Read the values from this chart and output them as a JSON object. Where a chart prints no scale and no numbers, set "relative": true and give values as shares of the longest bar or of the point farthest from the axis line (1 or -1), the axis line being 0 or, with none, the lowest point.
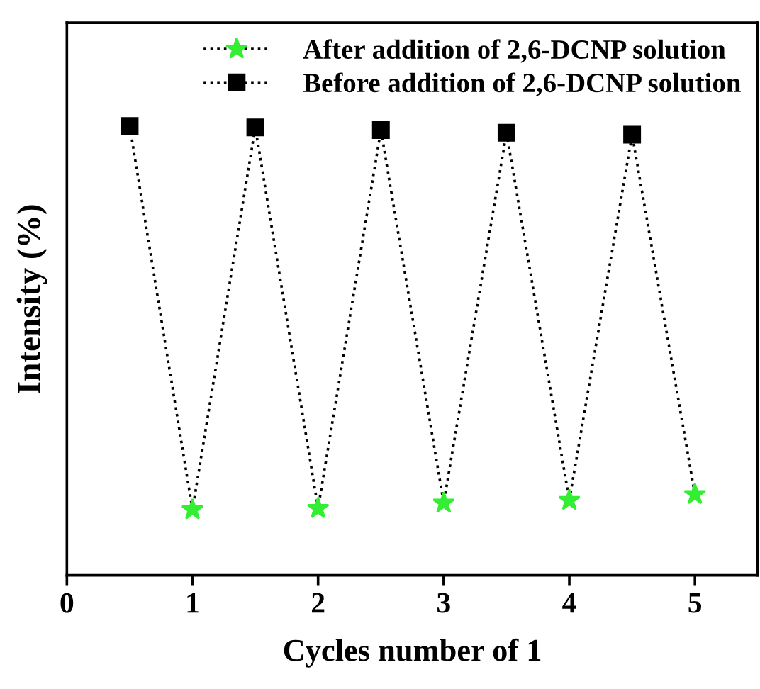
{
  "chart_data": {
    "type": "scatter",
    "xlabel": "Cycles number of 1",
    "ylabel": "Intensity (%)",
    "relative": true,
    "xlim": [
      0,
      5.5
    ],
    "xticks": [
      0,
      1,
      2,
      3,
      4,
      5
    ],
    "legend": "top right",
    "grid": false,
    "tick_labels": "x",
    "series": [
      {
        "type": "line",
        "color": "#000000",
        "marker": "none",
        "line_style": "dotted",
        "x": [
          0.5,
          1,
          1.5,
          2,
          2.5,
          3,
          3.5,
          4,
          4.5,
          5
        ],
        "values": [
          1,
          0.146,
          0.997,
          0.149,
          0.991,
          0.161,
          0.985,
          0.167,
          0.981,
          0.18
        ]
      },
      {
        "name": "After addition of 2,6-DCNP solution",
        "color": "#33ee33",
        "marker": "star",
        "x": [
          1,
          2,
          3,
          4,
          5
        ],
        "values": [
          0.146,
          0.149,
          0.161,
          0.167,
          0.18
        ]
      },
      {
        "name": "Before addition of 2,6-DCNP solution",
        "color": "#000000",
        "marker": "square",
        "x": [
          0.5,
          1.5,
          2.5,
          3.5,
          4.5
        ],
        "values": [
          1,
          0.997,
          0.991,
          0.985,
          0.981
        ]
      }
    ]
  }
}
